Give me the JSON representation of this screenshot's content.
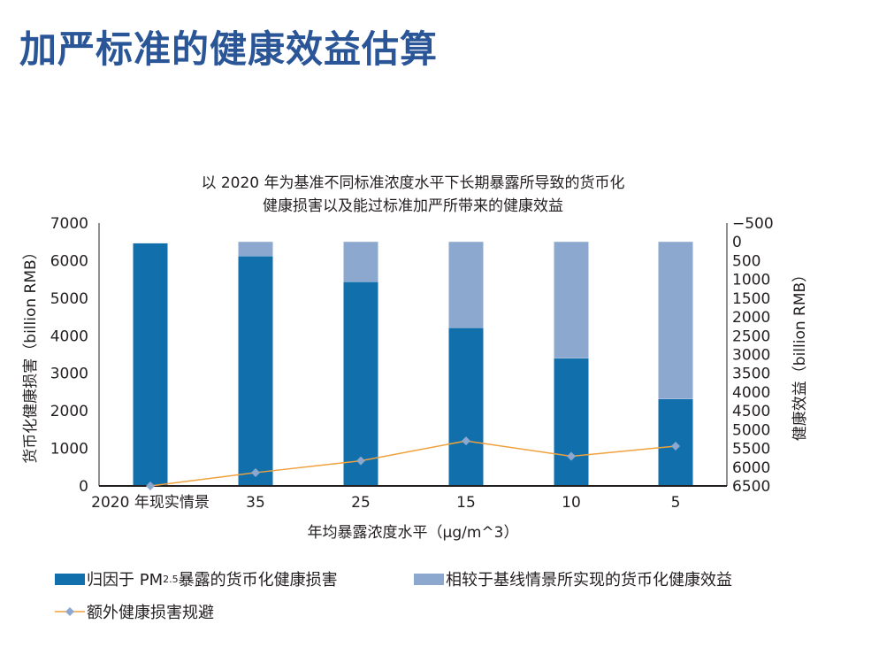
{
  "page_title": "加严标准的健康效益估算",
  "chart_data": {
    "type": "bar",
    "title_lines": [
      "以 2020 年为基准不同标准浓度水平下长期暴露所导致的货币化",
      "健康损害以及能过标准加严所带来的健康效益"
    ],
    "categories": [
      "2020 年现实情景",
      "35",
      "25",
      "15",
      "10",
      "5"
    ],
    "xlabel": "年均暴露浓度水平（μg/m^3）",
    "ylabel": "货币化健康损害（billion RMB）",
    "y2label": "健康效益（billion RMB）",
    "ylim": [
      0,
      7000
    ],
    "yticks": [
      0,
      1000,
      2000,
      3000,
      4000,
      5000,
      6000,
      7000
    ],
    "y2lim": [
      -500,
      6500
    ],
    "y2ticks": [
      -500,
      0,
      500,
      1000,
      1500,
      2000,
      2500,
      3000,
      3500,
      4000,
      4500,
      5000,
      5500,
      6000,
      6500
    ],
    "y2_inverted": true,
    "series": [
      {
        "name": "归因于 PM2.5 暴露的货币化健康损害",
        "type": "bar",
        "axis": "left",
        "color": "#1170ab",
        "values": [
          6460,
          6115,
          5430,
          4205,
          3395,
          2310
        ]
      },
      {
        "name": "相较于基线情景所实现的货币化健康效益",
        "type": "bar",
        "axis": "right",
        "color": "#8ca8cf",
        "values": [
          0,
          415,
          1100,
          2325,
          3135,
          4220
        ]
      },
      {
        "name": "额外健康损害规避",
        "type": "line",
        "axis": "left",
        "color": "#f0a13c",
        "marker_color": "#8ca8cf",
        "values": [
          0,
          355,
          670,
          1200,
          790,
          1060
        ]
      }
    ],
    "legend_position": "bottom"
  },
  "legend": {
    "s1_pre": "归因于 PM",
    "s1_sub": "2.5",
    "s1_post": " 暴露的货币化健康损害",
    "s2": "相较于基线情景所实现的货币化健康效益",
    "s3": "额外健康损害规避"
  }
}
